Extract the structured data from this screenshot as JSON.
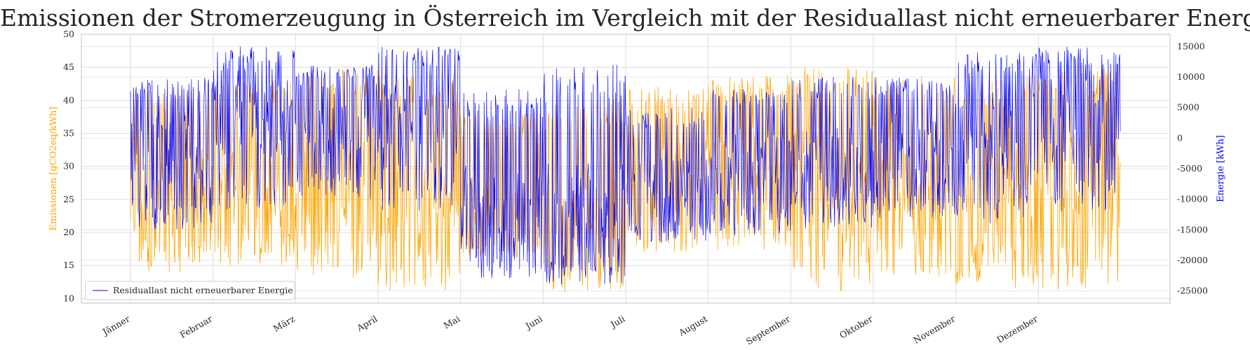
{
  "chart_data": {
    "type": "line",
    "title": "Emissionen der Stromerzeugung in Österreich im Vergleich mit der Residuallast nicht erneuerbarer Energie",
    "xlabel": "",
    "ylabel_left": "Emissionen [gCO2eq/kWh]",
    "ylabel_right": "Energie [kWh]",
    "ylim_left": [
      9.3,
      50
    ],
    "ylim_right": [
      -27000,
      17000
    ],
    "yticks_left": [
      10,
      15,
      20,
      25,
      30,
      35,
      40,
      45,
      50
    ],
    "yticks_right": [
      -25000,
      -20000,
      -15000,
      -10000,
      -5000,
      0,
      5000,
      10000,
      15000
    ],
    "x_categories": [
      "Jänner",
      "Februar",
      "März",
      "April",
      "Mai",
      "Juni",
      "Juli",
      "August",
      "September",
      "Oktober",
      "November",
      "Dezember"
    ],
    "grid": true,
    "legend_position": "lower-left",
    "colors": {
      "emissions": "#ffa500",
      "residual_load": "#0000ff"
    },
    "series": [
      {
        "axis": "left",
        "monthly_typical": [
          {
            "month": "Jänner",
            "low": 14,
            "high": 42,
            "mean": 25
          },
          {
            "month": "Februar",
            "low": 15,
            "high": 43,
            "mean": 27
          },
          {
            "month": "März",
            "low": 13,
            "high": 45,
            "mean": 26
          },
          {
            "month": "April",
            "low": 11,
            "high": 44,
            "mean": 24
          },
          {
            "month": "Mai",
            "low": 16,
            "high": 38,
            "mean": 23
          },
          {
            "month": "Juni",
            "low": 11,
            "high": 40,
            "mean": 22
          },
          {
            "month": "Juli",
            "low": 17,
            "high": 42,
            "mean": 28
          },
          {
            "month": "August",
            "low": 17,
            "high": 44,
            "mean": 29
          },
          {
            "month": "September",
            "low": 11,
            "high": 45,
            "mean": 27
          },
          {
            "month": "Oktober",
            "low": 13,
            "high": 44,
            "mean": 26
          },
          {
            "month": "November",
            "low": 11,
            "high": 44,
            "mean": 24
          },
          {
            "month": "Dezember",
            "low": 11,
            "high": 45,
            "mean": 26
          }
        ]
      },
      {
        "name": "Residuallast nicht erneuerbarer Energie",
        "axis": "right",
        "monthly_typical": [
          {
            "month": "Jänner",
            "low": -15000,
            "high": 10000,
            "mean": -3000
          },
          {
            "month": "Februar",
            "low": -12000,
            "high": 15000,
            "mean": 4000
          },
          {
            "month": "März",
            "low": -10000,
            "high": 12000,
            "mean": 3000
          },
          {
            "month": "April",
            "low": -12000,
            "high": 15000,
            "mean": 2000
          },
          {
            "month": "Mai",
            "low": -23000,
            "high": 8000,
            "mean": -12000
          },
          {
            "month": "Juni",
            "low": -24000,
            "high": 12000,
            "mean": -13000
          },
          {
            "month": "Juli",
            "low": -17000,
            "high": 5000,
            "mean": -9000
          },
          {
            "month": "August",
            "low": -16000,
            "high": 8000,
            "mean": -6000
          },
          {
            "month": "September",
            "low": -15000,
            "high": 10000,
            "mean": -5000
          },
          {
            "month": "Oktober",
            "low": -13000,
            "high": 10000,
            "mean": -2000
          },
          {
            "month": "November",
            "low": -14000,
            "high": 14000,
            "mean": 0
          },
          {
            "month": "Dezember",
            "low": -12000,
            "high": 15000,
            "mean": 3000
          }
        ]
      }
    ]
  }
}
